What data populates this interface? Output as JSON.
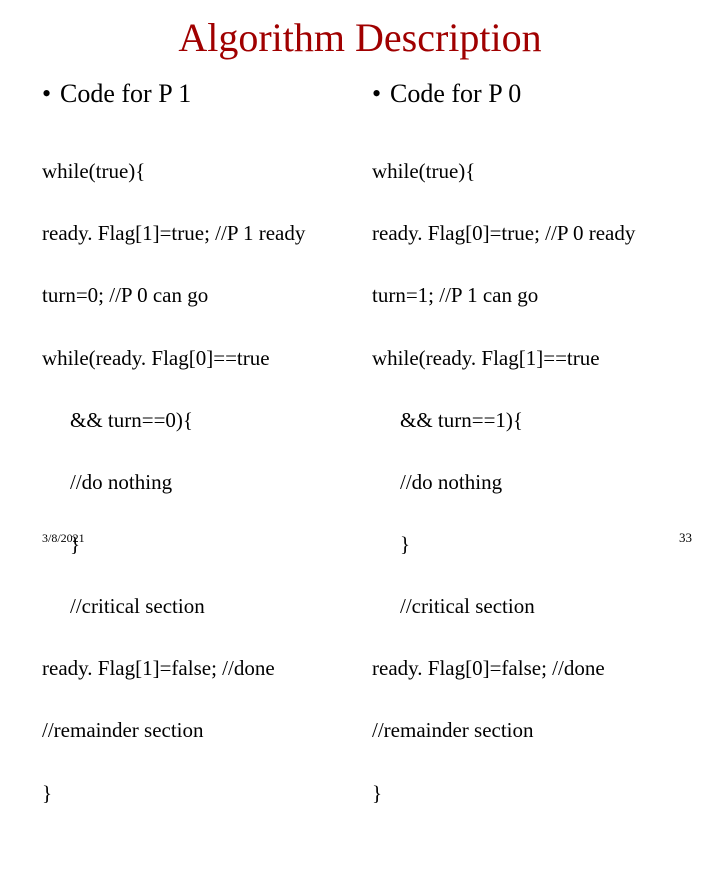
{
  "title": "Algorithm Description",
  "left": {
    "heading": "Code for P 1",
    "line1": "while(true){",
    "line2": "ready. Flag[1]=true; //P 1 ready",
    "line3": "turn=0; //P 0 can go",
    "line4": "while(ready. Flag[0]==true",
    "line5": "&& turn==0){",
    "line6": "//do nothing",
    "line7": "}",
    "line8": "//critical section",
    "line9": "ready. Flag[1]=false; //done",
    "line10": "//remainder section",
    "line11": "}"
  },
  "right": {
    "heading": "Code for P 0",
    "line1": "while(true){",
    "line2": "ready. Flag[0]=true; //P 0 ready",
    "line3": "turn=1; //P 1 can go",
    "line4": "while(ready. Flag[1]==true",
    "line5": "&& turn==1){",
    "line6": "//do nothing",
    "line7": "}",
    "line8": "//critical section",
    "line9": "ready. Flag[0]=false; //done",
    "line10": "//remainder section",
    "line11": "}"
  },
  "footer": {
    "date": "3/8/2021",
    "slide_number": "33"
  },
  "bullet_char": "•"
}
